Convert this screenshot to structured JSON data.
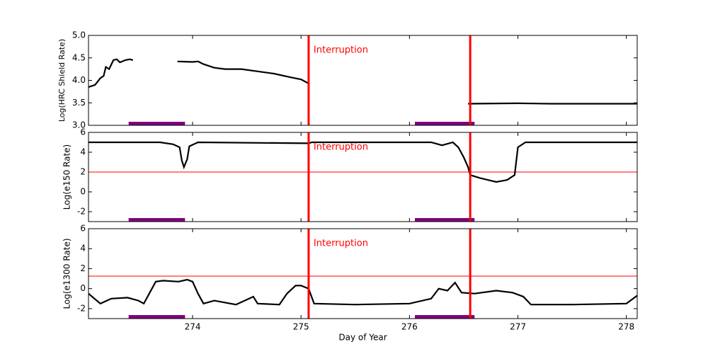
{
  "chart_data": [
    {
      "type": "line",
      "ylabel": "Log(HRC Shield Rate)",
      "xlim": [
        273.04,
        278.1
      ],
      "xticks": [
        274,
        275,
        276,
        277,
        278
      ],
      "ylim": [
        3,
        5
      ],
      "yticks": [
        {
          "value": 3,
          "label": "3.0"
        },
        {
          "value": 3.5,
          "label": "3.5"
        },
        {
          "value": 4,
          "label": "4.0"
        },
        {
          "value": 4.5,
          "label": "4.5"
        },
        {
          "value": 5,
          "label": "5.0"
        }
      ],
      "x": [
        273.04,
        273.1,
        273.15,
        273.18,
        273.2,
        273.23,
        273.27,
        273.3,
        273.33,
        273.38,
        273.42,
        273.45,
        null,
        273.86,
        274.0,
        274.05,
        274.1,
        274.2,
        274.3,
        274.45,
        274.6,
        274.75,
        274.9,
        275.0,
        275.07,
        null,
        276.54,
        277.0,
        277.3,
        278.1
      ],
      "values": [
        3.85,
        3.9,
        4.05,
        4.1,
        4.3,
        4.25,
        4.45,
        4.47,
        4.4,
        4.45,
        4.47,
        4.45,
        null,
        4.42,
        4.41,
        4.42,
        4.36,
        4.28,
        4.25,
        4.25,
        4.2,
        4.15,
        4.07,
        4.02,
        3.93,
        null,
        3.48,
        3.49,
        3.48,
        3.48
      ],
      "color": "#000000",
      "interruptions": [
        275.07,
        276.56
      ],
      "interruption_color": "#ff0000",
      "annotation": "Interruption",
      "highlight_intervals": [
        [
          273.41,
          273.93
        ],
        [
          276.05,
          276.6
        ]
      ],
      "highlight_color": "#800080"
    },
    {
      "type": "line",
      "ylabel": "Log(e150  Rate)",
      "xlim": [
        273.04,
        278.1
      ],
      "xticks": [
        274,
        275,
        276,
        277,
        278
      ],
      "ylim": [
        -3,
        6
      ],
      "yticks": [
        -2,
        0,
        2,
        4,
        6
      ],
      "x": [
        273.04,
        273.7,
        273.82,
        273.88,
        273.9,
        273.92,
        273.95,
        273.97,
        274.05,
        275.07,
        275.1,
        276.2,
        276.3,
        276.4,
        276.45,
        276.5,
        276.54,
        276.56,
        276.65,
        276.8,
        276.9,
        276.97,
        277.0,
        277.07,
        278.1
      ],
      "values": [
        5,
        5,
        4.8,
        4.5,
        3.2,
        2.5,
        3.3,
        4.6,
        5,
        4.9,
        5,
        5,
        4.7,
        5,
        4.5,
        3.5,
        2.5,
        1.7,
        1.4,
        1.0,
        1.2,
        1.7,
        4.5,
        5,
        5
      ],
      "color": "#000000",
      "threshold": 2,
      "threshold_color": "#ff0000",
      "interruptions": [
        275.07,
        276.56
      ],
      "interruption_color": "#ff0000",
      "annotation": "Interruption",
      "highlight_intervals": [
        [
          273.41,
          273.93
        ],
        [
          276.05,
          276.6
        ]
      ],
      "highlight_color": "#800080"
    },
    {
      "type": "line",
      "ylabel": "Log(e1300 Rate)",
      "xlabel": "Day of Year",
      "xlim": [
        273.04,
        278.1
      ],
      "xticks": [
        274,
        275,
        276,
        277,
        278
      ],
      "ylim": [
        -3,
        6
      ],
      "yticks": [
        -2,
        0,
        2,
        4,
        6
      ],
      "x": [
        273.04,
        273.15,
        273.25,
        273.4,
        273.5,
        273.55,
        273.66,
        273.73,
        273.87,
        273.95,
        274.0,
        274.05,
        274.1,
        274.2,
        274.4,
        274.56,
        274.6,
        274.8,
        274.87,
        274.95,
        275.0,
        275.07,
        275.12,
        275.5,
        276.0,
        276.2,
        276.27,
        276.35,
        276.42,
        276.48,
        276.6,
        276.8,
        276.95,
        277.05,
        277.12,
        277.5,
        278.0,
        278.1
      ],
      "values": [
        -0.5,
        -1.5,
        -1.0,
        -0.9,
        -1.2,
        -1.5,
        0.7,
        0.8,
        0.7,
        0.9,
        0.7,
        -0.5,
        -1.5,
        -1.2,
        -1.6,
        -0.8,
        -1.5,
        -1.6,
        -0.5,
        0.3,
        0.3,
        0.0,
        -1.5,
        -1.6,
        -1.5,
        -1.0,
        0.0,
        -0.2,
        0.6,
        -0.4,
        -0.5,
        -0.2,
        -0.4,
        -0.8,
        -1.6,
        -1.6,
        -1.5,
        -0.7
      ],
      "color": "#000000",
      "threshold": 1.25,
      "threshold_color": "#ff0000",
      "interruptions": [
        275.07,
        276.56
      ],
      "interruption_color": "#ff0000",
      "annotation": "Interruption",
      "highlight_intervals": [
        [
          273.41,
          273.93
        ],
        [
          276.05,
          276.6
        ]
      ],
      "highlight_color": "#800080"
    }
  ]
}
